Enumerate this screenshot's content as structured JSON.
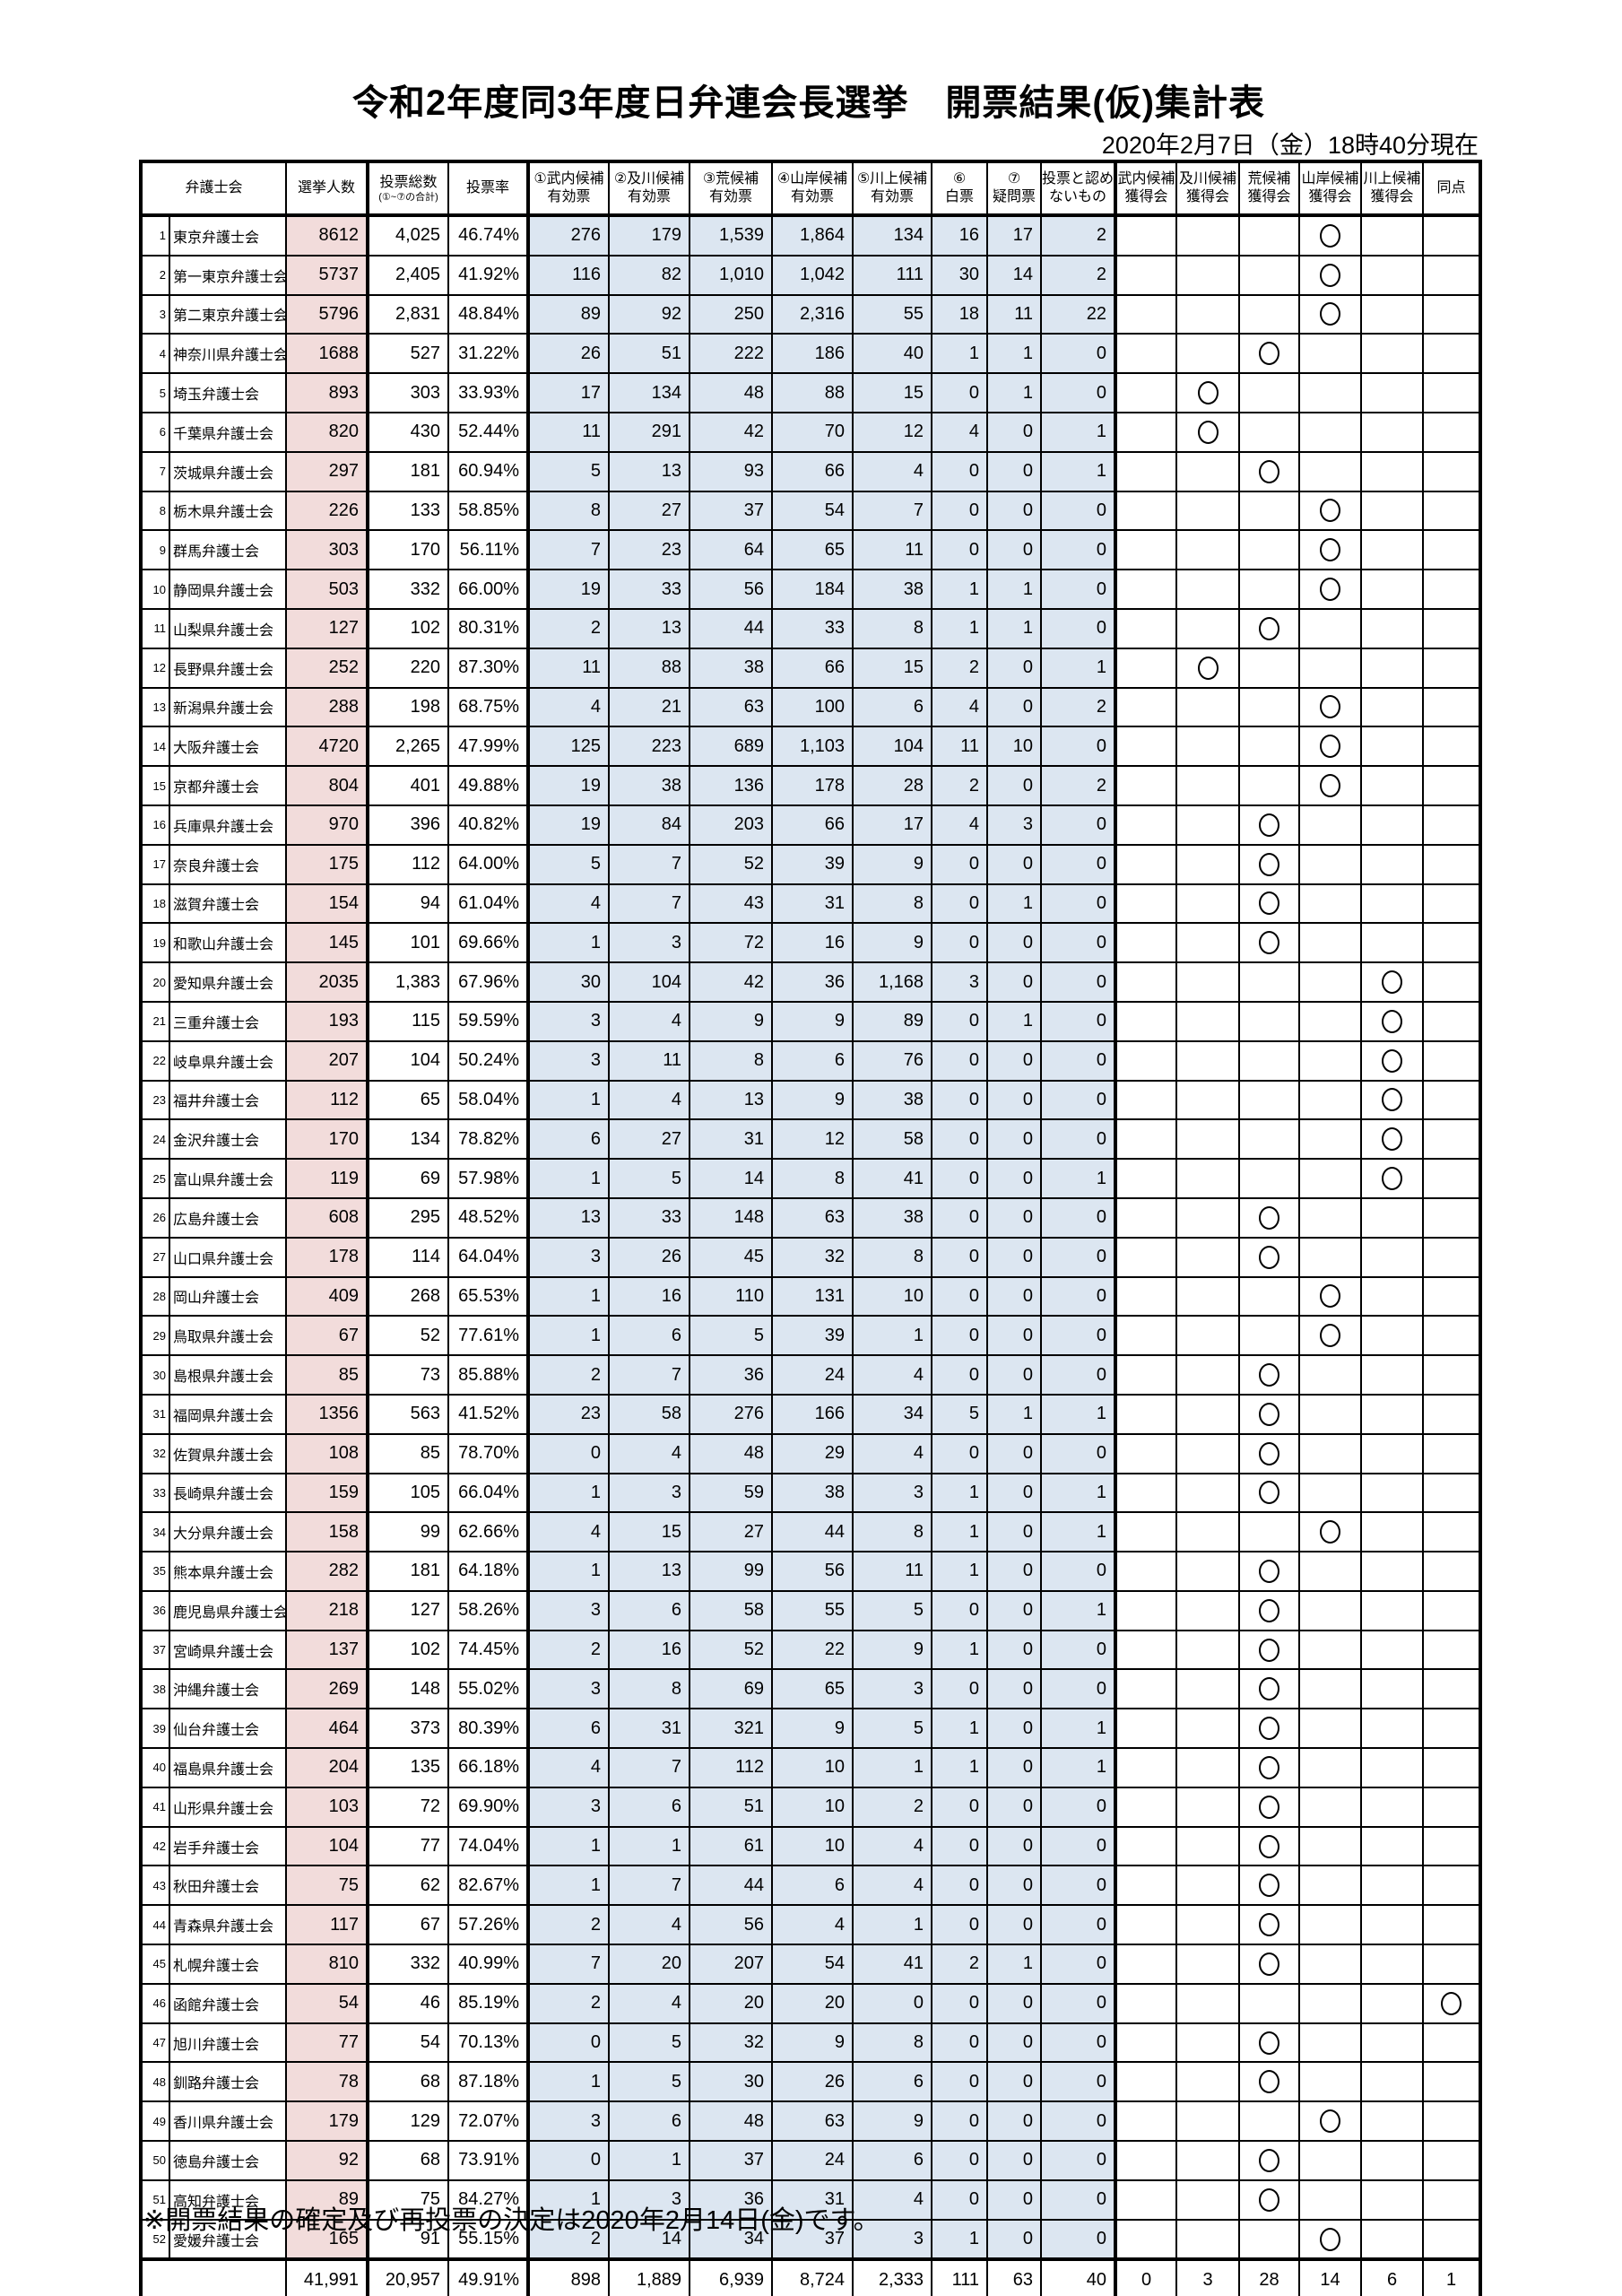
{
  "title": "令和2年度同3年度日弁連会長選挙　開票結果(仮)集計表",
  "as_of": "2020年2月7日（金）18時40分現在",
  "footnote": "※開票結果の確定及び再投票の決定は2020年2月14日(金)です。",
  "colors": {
    "electors_column_bg": "#f2dcdb",
    "vote_columns_bg": "#dce6f1",
    "border": "#000000"
  },
  "winner_symbol": "○",
  "table": {
    "header": {
      "bar_association": "弁護士会",
      "electors": "選挙人数",
      "total_votes_main": "投票総数",
      "total_votes_sub": "(①~⑦の合計)",
      "turnout": "投票率",
      "c1": "①武内候補\n有効票",
      "c2": "②及川候補\n有効票",
      "c3": "③荒候補\n有効票",
      "c4": "④山岸候補\n有効票",
      "c5": "⑤川上候補\n有効票",
      "c6": "⑥\n白票",
      "c7": "⑦\n疑問票",
      "invalid": "投票と認め\nないもの",
      "g1": "武内候補\n獲得会",
      "g2": "及川候補\n獲得会",
      "g3": "荒候補\n獲得会",
      "g4": "山岸候補\n獲得会",
      "g5": "川上候補\n獲得会",
      "tie": "同点"
    },
    "rows": [
      [
        "東京弁護士会",
        "8612",
        "4,025",
        "46.74%",
        "276",
        "179",
        "1,539",
        "1,864",
        "134",
        "16",
        "17",
        "2",
        "yamagishi"
      ],
      [
        "第一東京弁護士会",
        "5737",
        "2,405",
        "41.92%",
        "116",
        "82",
        "1,010",
        "1,042",
        "111",
        "30",
        "14",
        "2",
        "yamagishi"
      ],
      [
        "第二東京弁護士会",
        "5796",
        "2,831",
        "48.84%",
        "89",
        "92",
        "250",
        "2,316",
        "55",
        "18",
        "11",
        "22",
        "yamagishi"
      ],
      [
        "神奈川県弁護士会",
        "1688",
        "527",
        "31.22%",
        "26",
        "51",
        "222",
        "186",
        "40",
        "1",
        "1",
        "0",
        "ara"
      ],
      [
        "埼玉弁護士会",
        "893",
        "303",
        "33.93%",
        "17",
        "134",
        "48",
        "88",
        "15",
        "0",
        "1",
        "0",
        "oikawa"
      ],
      [
        "千葉県弁護士会",
        "820",
        "430",
        "52.44%",
        "11",
        "291",
        "42",
        "70",
        "12",
        "4",
        "0",
        "1",
        "oikawa"
      ],
      [
        "茨城県弁護士会",
        "297",
        "181",
        "60.94%",
        "5",
        "13",
        "93",
        "66",
        "4",
        "0",
        "0",
        "1",
        "ara"
      ],
      [
        "栃木県弁護士会",
        "226",
        "133",
        "58.85%",
        "8",
        "27",
        "37",
        "54",
        "7",
        "0",
        "0",
        "0",
        "yamagishi"
      ],
      [
        "群馬弁護士会",
        "303",
        "170",
        "56.11%",
        "7",
        "23",
        "64",
        "65",
        "11",
        "0",
        "0",
        "0",
        "yamagishi"
      ],
      [
        "静岡県弁護士会",
        "503",
        "332",
        "66.00%",
        "19",
        "33",
        "56",
        "184",
        "38",
        "1",
        "1",
        "0",
        "yamagishi"
      ],
      [
        "山梨県弁護士会",
        "127",
        "102",
        "80.31%",
        "2",
        "13",
        "44",
        "33",
        "8",
        "1",
        "1",
        "0",
        "ara"
      ],
      [
        "長野県弁護士会",
        "252",
        "220",
        "87.30%",
        "11",
        "88",
        "38",
        "66",
        "15",
        "2",
        "0",
        "1",
        "oikawa"
      ],
      [
        "新潟県弁護士会",
        "288",
        "198",
        "68.75%",
        "4",
        "21",
        "63",
        "100",
        "6",
        "4",
        "0",
        "2",
        "yamagishi"
      ],
      [
        "大阪弁護士会",
        "4720",
        "2,265",
        "47.99%",
        "125",
        "223",
        "689",
        "1,103",
        "104",
        "11",
        "10",
        "0",
        "yamagishi"
      ],
      [
        "京都弁護士会",
        "804",
        "401",
        "49.88%",
        "19",
        "38",
        "136",
        "178",
        "28",
        "2",
        "0",
        "2",
        "yamagishi"
      ],
      [
        "兵庫県弁護士会",
        "970",
        "396",
        "40.82%",
        "19",
        "84",
        "203",
        "66",
        "17",
        "4",
        "3",
        "0",
        "ara"
      ],
      [
        "奈良弁護士会",
        "175",
        "112",
        "64.00%",
        "5",
        "7",
        "52",
        "39",
        "9",
        "0",
        "0",
        "0",
        "ara"
      ],
      [
        "滋賀弁護士会",
        "154",
        "94",
        "61.04%",
        "4",
        "7",
        "43",
        "31",
        "8",
        "0",
        "1",
        "0",
        "ara"
      ],
      [
        "和歌山弁護士会",
        "145",
        "101",
        "69.66%",
        "1",
        "3",
        "72",
        "16",
        "9",
        "0",
        "0",
        "0",
        "ara"
      ],
      [
        "愛知県弁護士会",
        "2035",
        "1,383",
        "67.96%",
        "30",
        "104",
        "42",
        "36",
        "1,168",
        "3",
        "0",
        "0",
        "kawakami"
      ],
      [
        "三重弁護士会",
        "193",
        "115",
        "59.59%",
        "3",
        "4",
        "9",
        "9",
        "89",
        "0",
        "1",
        "0",
        "kawakami"
      ],
      [
        "岐阜県弁護士会",
        "207",
        "104",
        "50.24%",
        "3",
        "11",
        "8",
        "6",
        "76",
        "0",
        "0",
        "0",
        "kawakami"
      ],
      [
        "福井弁護士会",
        "112",
        "65",
        "58.04%",
        "1",
        "4",
        "13",
        "9",
        "38",
        "0",
        "0",
        "0",
        "kawakami"
      ],
      [
        "金沢弁護士会",
        "170",
        "134",
        "78.82%",
        "6",
        "27",
        "31",
        "12",
        "58",
        "0",
        "0",
        "0",
        "kawakami"
      ],
      [
        "富山県弁護士会",
        "119",
        "69",
        "57.98%",
        "1",
        "5",
        "14",
        "8",
        "41",
        "0",
        "0",
        "1",
        "kawakami"
      ],
      [
        "広島弁護士会",
        "608",
        "295",
        "48.52%",
        "13",
        "33",
        "148",
        "63",
        "38",
        "0",
        "0",
        "0",
        "ara"
      ],
      [
        "山口県弁護士会",
        "178",
        "114",
        "64.04%",
        "3",
        "26",
        "45",
        "32",
        "8",
        "0",
        "0",
        "0",
        "ara"
      ],
      [
        "岡山弁護士会",
        "409",
        "268",
        "65.53%",
        "1",
        "16",
        "110",
        "131",
        "10",
        "0",
        "0",
        "0",
        "yamagishi"
      ],
      [
        "鳥取県弁護士会",
        "67",
        "52",
        "77.61%",
        "1",
        "6",
        "5",
        "39",
        "1",
        "0",
        "0",
        "0",
        "yamagishi"
      ],
      [
        "島根県弁護士会",
        "85",
        "73",
        "85.88%",
        "2",
        "7",
        "36",
        "24",
        "4",
        "0",
        "0",
        "0",
        "ara"
      ],
      [
        "福岡県弁護士会",
        "1356",
        "563",
        "41.52%",
        "23",
        "58",
        "276",
        "166",
        "34",
        "5",
        "1",
        "1",
        "ara"
      ],
      [
        "佐賀県弁護士会",
        "108",
        "85",
        "78.70%",
        "0",
        "4",
        "48",
        "29",
        "4",
        "0",
        "0",
        "0",
        "ara"
      ],
      [
        "長崎県弁護士会",
        "159",
        "105",
        "66.04%",
        "1",
        "3",
        "59",
        "38",
        "3",
        "1",
        "0",
        "1",
        "ara"
      ],
      [
        "大分県弁護士会",
        "158",
        "99",
        "62.66%",
        "4",
        "15",
        "27",
        "44",
        "8",
        "1",
        "0",
        "1",
        "yamagishi"
      ],
      [
        "熊本県弁護士会",
        "282",
        "181",
        "64.18%",
        "1",
        "13",
        "99",
        "56",
        "11",
        "1",
        "0",
        "0",
        "ara"
      ],
      [
        "鹿児島県弁護士会",
        "218",
        "127",
        "58.26%",
        "3",
        "6",
        "58",
        "55",
        "5",
        "0",
        "0",
        "1",
        "ara"
      ],
      [
        "宮崎県弁護士会",
        "137",
        "102",
        "74.45%",
        "2",
        "16",
        "52",
        "22",
        "9",
        "1",
        "0",
        "0",
        "ara"
      ],
      [
        "沖縄弁護士会",
        "269",
        "148",
        "55.02%",
        "3",
        "8",
        "69",
        "65",
        "3",
        "0",
        "0",
        "0",
        "ara"
      ],
      [
        "仙台弁護士会",
        "464",
        "373",
        "80.39%",
        "6",
        "31",
        "321",
        "9",
        "5",
        "1",
        "0",
        "1",
        "ara"
      ],
      [
        "福島県弁護士会",
        "204",
        "135",
        "66.18%",
        "4",
        "7",
        "112",
        "10",
        "1",
        "1",
        "0",
        "1",
        "ara"
      ],
      [
        "山形県弁護士会",
        "103",
        "72",
        "69.90%",
        "3",
        "6",
        "51",
        "10",
        "2",
        "0",
        "0",
        "0",
        "ara"
      ],
      [
        "岩手弁護士会",
        "104",
        "77",
        "74.04%",
        "1",
        "1",
        "61",
        "10",
        "4",
        "0",
        "0",
        "0",
        "ara"
      ],
      [
        "秋田弁護士会",
        "75",
        "62",
        "82.67%",
        "1",
        "7",
        "44",
        "6",
        "4",
        "0",
        "0",
        "0",
        "ara"
      ],
      [
        "青森県弁護士会",
        "117",
        "67",
        "57.26%",
        "2",
        "4",
        "56",
        "4",
        "1",
        "0",
        "0",
        "0",
        "ara"
      ],
      [
        "札幌弁護士会",
        "810",
        "332",
        "40.99%",
        "7",
        "20",
        "207",
        "54",
        "41",
        "2",
        "1",
        "0",
        "ara"
      ],
      [
        "函館弁護士会",
        "54",
        "46",
        "85.19%",
        "2",
        "4",
        "20",
        "20",
        "0",
        "0",
        "0",
        "0",
        "tie"
      ],
      [
        "旭川弁護士会",
        "77",
        "54",
        "70.13%",
        "0",
        "5",
        "32",
        "9",
        "8",
        "0",
        "0",
        "0",
        "ara"
      ],
      [
        "釧路弁護士会",
        "78",
        "68",
        "87.18%",
        "1",
        "5",
        "30",
        "26",
        "6",
        "0",
        "0",
        "0",
        "ara"
      ],
      [
        "香川県弁護士会",
        "179",
        "129",
        "72.07%",
        "3",
        "6",
        "48",
        "63",
        "9",
        "0",
        "0",
        "0",
        "yamagishi"
      ],
      [
        "徳島弁護士会",
        "92",
        "68",
        "73.91%",
        "0",
        "1",
        "37",
        "24",
        "6",
        "0",
        "0",
        "0",
        "ara"
      ],
      [
        "高知弁護士会",
        "89",
        "75",
        "84.27%",
        "1",
        "3",
        "36",
        "31",
        "4",
        "0",
        "0",
        "0",
        "ara"
      ],
      [
        "愛媛弁護士会",
        "165",
        "91",
        "55.15%",
        "2",
        "14",
        "34",
        "37",
        "3",
        "1",
        "0",
        "0",
        "yamagishi"
      ]
    ],
    "totals": {
      "electors": "41,991",
      "total_votes": "20,957",
      "turnout": "49.91%",
      "c1": "898",
      "c2": "1,889",
      "c3": "6,939",
      "c4": "8,724",
      "c5": "2,333",
      "c6": "111",
      "c7": "63",
      "invalid": "40",
      "g_takeuchi": "0",
      "g_oikawa": "3",
      "g_ara": "28",
      "g_yamagishi": "14",
      "g_kawakami": "6",
      "tie": "1"
    }
  }
}
